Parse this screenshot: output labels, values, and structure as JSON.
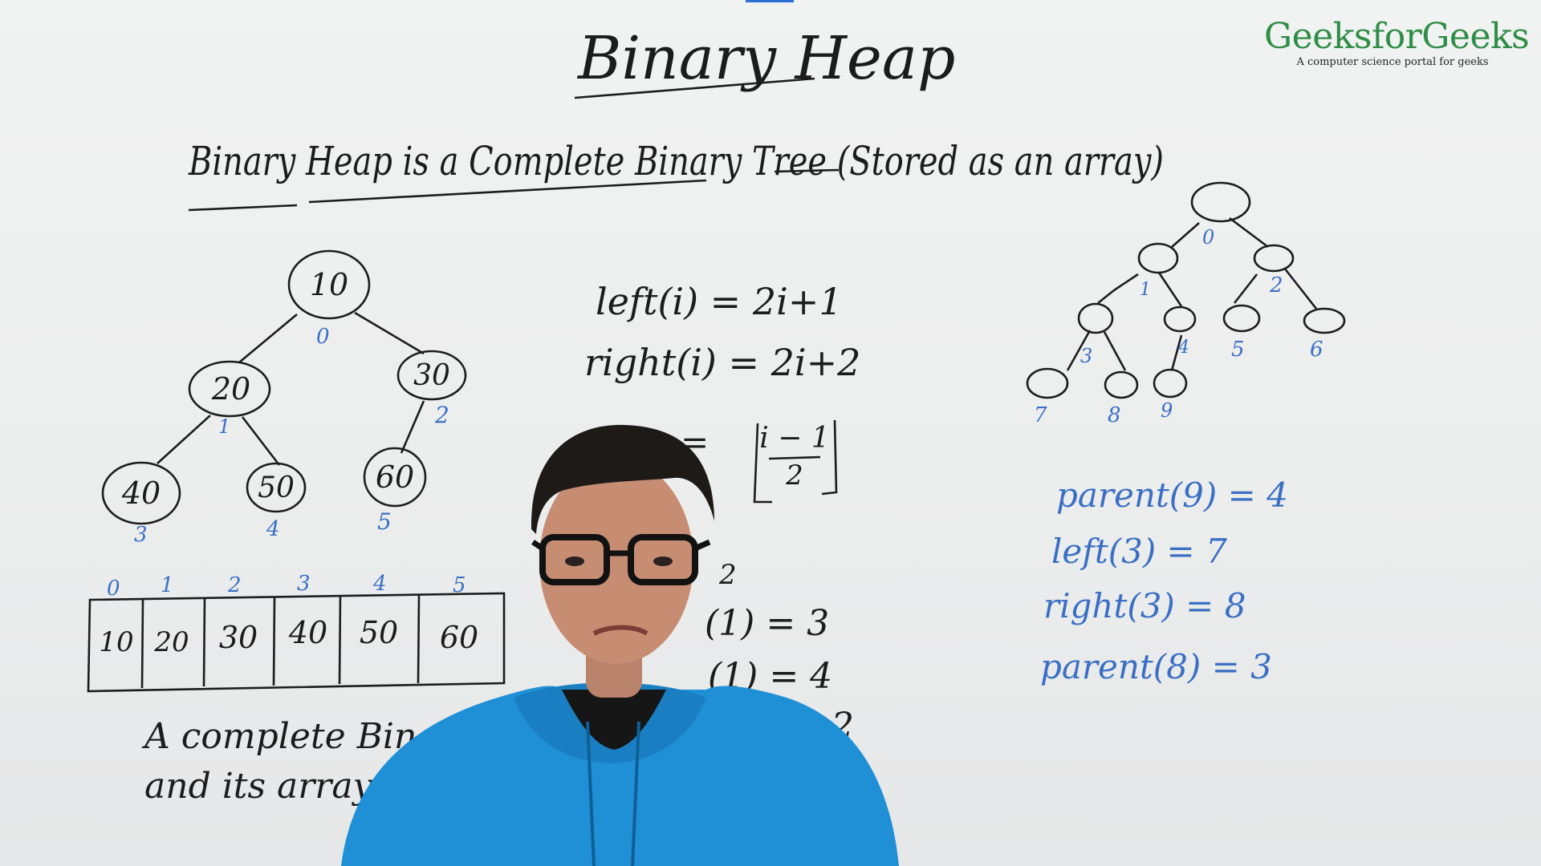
{
  "board": {
    "title": "Binary Heap",
    "definition": "Binary Heap is a Complete Binary Tree (Stored as an array)",
    "tree": {
      "nodes": [
        "10",
        "20",
        "30",
        "40",
        "50",
        "60"
      ],
      "indices": [
        "0",
        "1",
        "2",
        "3",
        "4",
        "5"
      ]
    },
    "array": {
      "indices": [
        "0",
        "1",
        "2",
        "3",
        "4",
        "5"
      ],
      "values": [
        "10",
        "20",
        "30",
        "40",
        "50",
        "60"
      ]
    },
    "formulas": {
      "left": "left(i) = 2i+1",
      "right": "right(i) = 2i+2",
      "parent_rhs": "= ⌊(i−1)/2⌋",
      "fraction_top": "i − 1",
      "fraction_bottom": "2",
      "partial": [
        "2",
        "(1) = 3",
        "(1) = 4",
        "2"
      ]
    },
    "caption": {
      "line1": "A complete Binary T",
      "line2": "and its array"
    },
    "right_tree": {
      "indices": [
        "0",
        "1",
        "2",
        "3",
        "4",
        "5",
        "6",
        "7",
        "8",
        "9"
      ]
    },
    "examples": [
      "parent(9) = 4",
      "left(3) = 7",
      "right(3) = 8",
      "parent(8) = 3"
    ]
  },
  "logo": {
    "name": "GeeksforGeeks",
    "tagline": "A computer science portal for geeks",
    "color": "#2f8d46"
  },
  "colors": {
    "ink": "#1c1c1c",
    "blue_marker": "#3a6fc4",
    "hoodie": "#1f8fd6"
  }
}
